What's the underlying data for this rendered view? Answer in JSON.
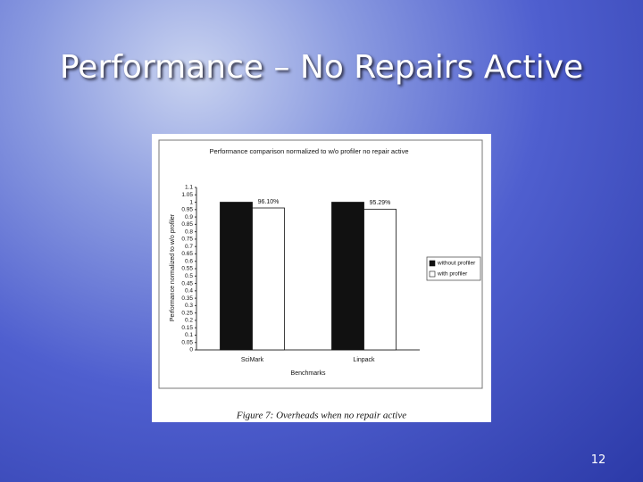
{
  "slide": {
    "title": "Performance – No Repairs Active",
    "page_number": "12"
  },
  "chart_data": {
    "type": "bar",
    "title": "Performance comparison normalized to w/o profiler no repair active",
    "y_label": "Performance normalized to w/o profiler",
    "x_label": "Benchmarks",
    "caption": "Figure 7: Overheads when no repair active",
    "categories": [
      "SciMark",
      "Linpack"
    ],
    "series": [
      {
        "name": "without profiler",
        "color": "#111111",
        "values": [
          1,
          1
        ]
      },
      {
        "name": "with profiler",
        "color": "#ffffff",
        "values": [
          0.961,
          0.9529
        ],
        "value_labels": [
          "96.10%",
          "95.29%"
        ]
      }
    ],
    "ylim": [
      0,
      1.1
    ],
    "yticks": [
      0,
      0.05,
      0.1,
      0.15,
      0.2,
      0.25,
      0.3,
      0.35,
      0.4,
      0.45,
      0.5,
      0.55,
      0.6,
      0.65,
      0.7,
      0.75,
      0.8,
      0.85,
      0.9,
      0.95,
      1,
      1.05,
      1.1
    ],
    "grid": false,
    "legend": "right"
  }
}
